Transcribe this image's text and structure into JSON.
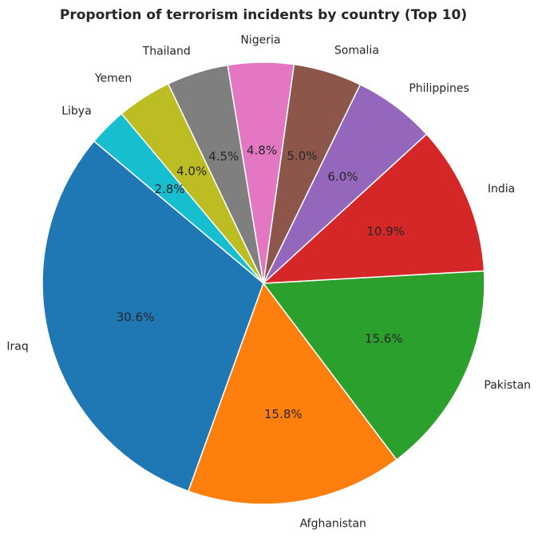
{
  "chart_data": {
    "type": "pie",
    "title": "Proportion of terrorism incidents by country (Top 10)",
    "categories": [
      "Iraq",
      "Afghanistan",
      "Pakistan",
      "India",
      "Philippines",
      "Somalia",
      "Nigeria",
      "Thailand",
      "Yemen",
      "Libya"
    ],
    "values": [
      30.6,
      15.8,
      15.6,
      10.9,
      6.0,
      5.0,
      4.8,
      4.5,
      4.0,
      2.8
    ],
    "value_labels": [
      "30.6%",
      "15.8%",
      "15.6%",
      "10.9%",
      "6.0%",
      "5.0%",
      "4.8%",
      "4.5%",
      "4.0%",
      "2.8%"
    ],
    "colors": [
      "#1f77b4",
      "#ff7f0e",
      "#2ca02c",
      "#d62728",
      "#9467bd",
      "#8c564b",
      "#e377c2",
      "#7f7f7f",
      "#bcbd22",
      "#17becf"
    ],
    "start_angle_deg": 140,
    "direction": "counterclockwise",
    "legend": "none"
  }
}
